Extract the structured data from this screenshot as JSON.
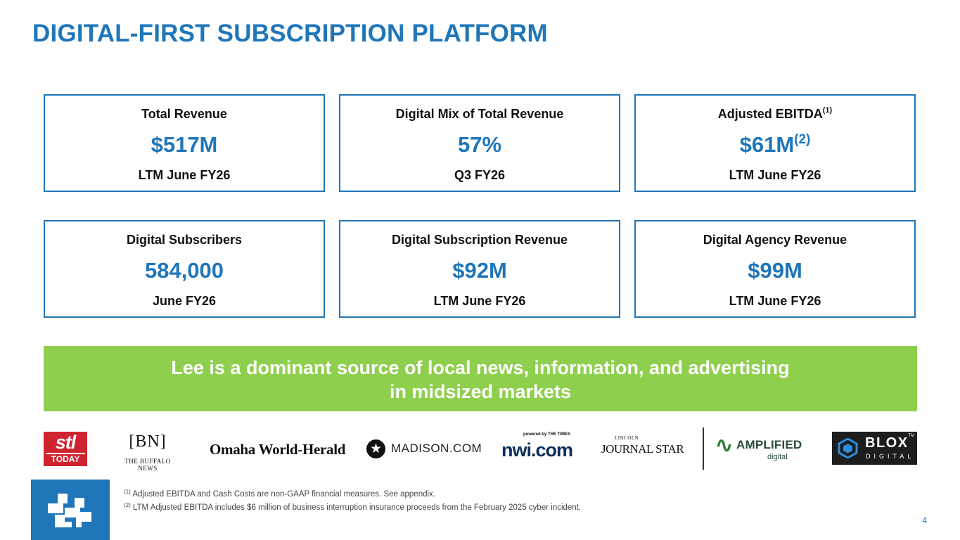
{
  "title": "DIGITAL-FIRST SUBSCRIPTION PLATFORM",
  "kpis": [
    {
      "label": "Total Revenue",
      "label_note": "",
      "value": "$517M",
      "value_note": "",
      "period": "LTM June FY26"
    },
    {
      "label": "Digital Mix of Total Revenue",
      "label_note": "",
      "value": "57%",
      "value_note": "",
      "period": "Q3 FY26"
    },
    {
      "label": "Adjusted EBITDA",
      "label_note": "(1)",
      "value": "$61M",
      "value_note": "(2)",
      "period": "LTM June FY26"
    },
    {
      "label": "Digital Subscribers",
      "label_note": "",
      "value": "584,000",
      "value_note": "",
      "period": "June FY26"
    },
    {
      "label": "Digital Subscription Revenue",
      "label_note": "",
      "value": "$92M",
      "value_note": "",
      "period": "LTM June FY26"
    },
    {
      "label": "Digital Agency Revenue",
      "label_note": "",
      "value": "$99M",
      "value_note": "",
      "period": "LTM June FY26"
    }
  ],
  "banner": {
    "line1": "Lee is a dominant source of local news, information, and advertising",
    "line2": "in midsized markets",
    "color": "#8fcf4e"
  },
  "logos": {
    "stl": {
      "big": "stl",
      "small": "TODAY"
    },
    "buffalo": {
      "mark": "[BN]",
      "name": "THE BUFFALO NEWS"
    },
    "omaha": "Omaha World-Herald",
    "madison": {
      "icon": "star-icon",
      "text": "MADISON.COM"
    },
    "nwi": {
      "tag": "powered by THE TIMES",
      "text": "nwi.com"
    },
    "ljs": {
      "tiny": "LINCOLN",
      "main": "JOURNAL STAR"
    },
    "amplified": {
      "word": "AMPLIFIED",
      "sub": "digital"
    },
    "blox": {
      "word": "BLOX",
      "tm": "TM",
      "sub": "DIGITAL"
    }
  },
  "footnotes": [
    {
      "marker": "(1)",
      "text": "Adjusted EBITDA and Cash Costs are non-GAAP financial measures. See appendix."
    },
    {
      "marker": "(2)",
      "text": "LTM Adjusted EBITDA includes $6 million of business interruption insurance proceeds from the February 2025 cyber incident."
    }
  ],
  "page_number": "4",
  "colors": {
    "accent": "#1f76b9",
    "banner": "#8fcf4e"
  }
}
